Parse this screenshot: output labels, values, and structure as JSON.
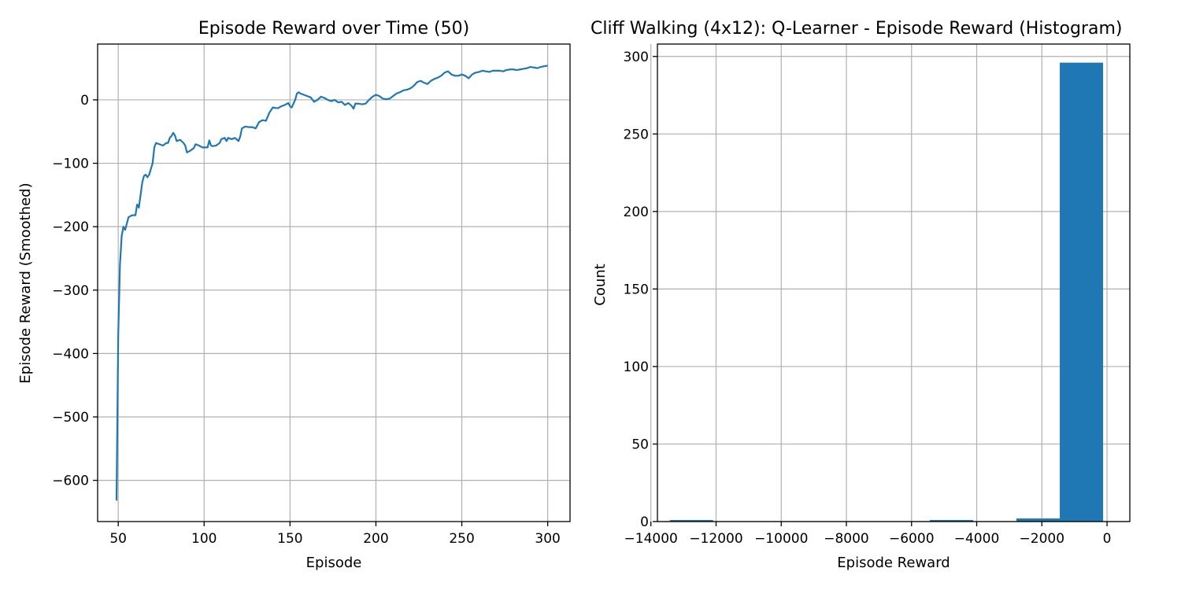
{
  "chart_data": [
    {
      "type": "line",
      "title": "Episode Reward over Time (50)",
      "xlabel": "Episode",
      "ylabel": "Episode Reward (Smoothed)",
      "xlim": [
        38,
        313
      ],
      "ylim": [
        -665,
        88
      ],
      "xticks": [
        50,
        100,
        150,
        200,
        250,
        300
      ],
      "xtick_labels": [
        "50",
        "100",
        "150",
        "200",
        "250",
        "300"
      ],
      "yticks": [
        -600,
        -500,
        -400,
        -300,
        -200,
        -100,
        0
      ],
      "ytick_labels": [
        "−600",
        "−500",
        "−400",
        "−300",
        "−200",
        "−100",
        "0"
      ],
      "grid": true,
      "color": "#1f77b4",
      "series": [
        {
          "x": [
            49,
            50,
            51,
            52,
            53,
            54,
            55,
            56,
            58,
            60,
            61,
            62,
            64,
            65,
            66,
            67,
            68,
            70,
            71,
            72,
            74,
            76,
            78,
            79,
            80,
            81,
            82,
            83,
            84,
            86,
            88,
            89,
            90,
            92,
            94,
            95,
            97,
            99,
            100,
            102,
            103,
            104,
            105,
            107,
            109,
            110,
            112,
            113,
            114,
            116,
            118,
            120,
            121,
            122,
            124,
            126,
            128,
            130,
            131,
            132,
            134,
            136,
            138,
            140,
            142,
            143,
            145,
            147,
            149,
            150,
            151,
            153,
            154,
            155,
            156,
            158,
            160,
            162,
            164,
            166,
            168,
            170,
            172,
            174,
            176,
            178,
            180,
            182,
            184,
            186,
            187,
            188,
            190,
            192,
            194,
            196,
            198,
            200,
            202,
            204,
            206,
            208,
            210,
            212,
            214,
            216,
            218,
            220,
            222,
            224,
            226,
            228,
            230,
            232,
            234,
            236,
            238,
            240,
            242,
            244,
            246,
            248,
            250,
            252,
            254,
            256,
            258,
            260,
            262,
            264,
            266,
            268,
            270,
            272,
            274,
            276,
            278,
            280,
            282,
            284,
            286,
            288,
            290,
            292,
            294,
            296,
            298,
            300
          ],
          "y": [
            -632,
            -370,
            -260,
            -215,
            -200,
            -205,
            -195,
            -185,
            -182,
            -182,
            -165,
            -170,
            -130,
            -120,
            -118,
            -122,
            -118,
            -100,
            -75,
            -68,
            -70,
            -72,
            -68,
            -68,
            -60,
            -57,
            -52,
            -56,
            -65,
            -63,
            -68,
            -72,
            -83,
            -80,
            -76,
            -70,
            -72,
            -75,
            -75,
            -75,
            -64,
            -72,
            -73,
            -72,
            -68,
            -62,
            -60,
            -65,
            -60,
            -62,
            -60,
            -65,
            -58,
            -45,
            -42,
            -43,
            -43,
            -45,
            -40,
            -35,
            -32,
            -33,
            -20,
            -12,
            -13,
            -13,
            -10,
            -8,
            -5,
            -10,
            -12,
            0,
            10,
            12,
            10,
            8,
            6,
            4,
            -3,
            0,
            5,
            3,
            0,
            -2,
            0,
            -4,
            -3,
            -8,
            -5,
            -10,
            -14,
            -6,
            -6,
            -7,
            -6,
            0,
            5,
            8,
            6,
            2,
            1,
            2,
            6,
            10,
            12,
            15,
            16,
            18,
            22,
            28,
            30,
            27,
            25,
            30,
            33,
            35,
            38,
            43,
            45,
            40,
            38,
            38,
            40,
            38,
            34,
            40,
            43,
            44,
            46,
            45,
            44,
            46,
            46,
            46,
            45,
            47,
            48,
            48,
            47,
            48,
            49,
            50,
            52,
            51,
            50,
            52,
            53,
            54
          ]
        }
      ]
    },
    {
      "type": "bar",
      "title": "Cliff Walking (4x12): Q-Learner - Episode Reward (Histogram)",
      "xlabel": "Episode Reward",
      "ylabel": "Count",
      "xlim": [
        -13800,
        700
      ],
      "ylim": [
        0,
        308
      ],
      "xticks": [
        -14000,
        -12000,
        -10000,
        -8000,
        -6000,
        -4000,
        -2000,
        0
      ],
      "xtick_labels": [
        "−14000",
        "−12000",
        "−10000",
        "−8000",
        "−6000",
        "−4000",
        "−2000",
        "0"
      ],
      "yticks": [
        0,
        50,
        100,
        150,
        200,
        250,
        300
      ],
      "ytick_labels": [
        "0",
        "50",
        "100",
        "150",
        "200",
        "250",
        "300"
      ],
      "grid": true,
      "color": "#1f77b4",
      "bins": [
        {
          "x0": -13420,
          "x1": -12090,
          "count": 1
        },
        {
          "x0": -12090,
          "x1": -10760,
          "count": 0
        },
        {
          "x0": -10760,
          "x1": -9430,
          "count": 0
        },
        {
          "x0": -9430,
          "x1": -8100,
          "count": 0
        },
        {
          "x0": -8100,
          "x1": -6770,
          "count": 0
        },
        {
          "x0": -6770,
          "x1": -5440,
          "count": 0
        },
        {
          "x0": -5440,
          "x1": -4110,
          "count": 1
        },
        {
          "x0": -4110,
          "x1": -2780,
          "count": 0
        },
        {
          "x0": -2780,
          "x1": -1450,
          "count": 2
        },
        {
          "x0": -1450,
          "x1": -120,
          "count": 296
        }
      ]
    }
  ]
}
